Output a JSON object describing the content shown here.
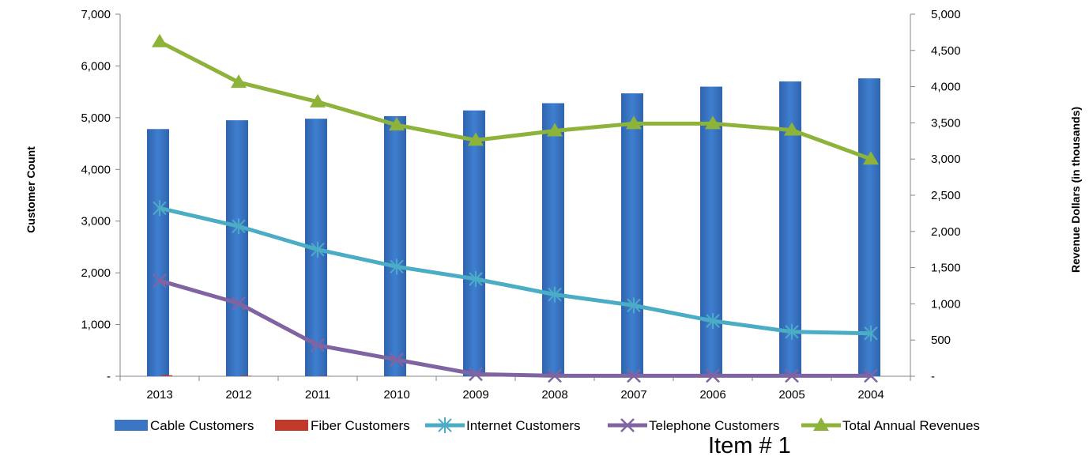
{
  "chart_data": {
    "type": "bar+line",
    "categories": [
      "2013",
      "2012",
      "2011",
      "2010",
      "2009",
      "2008",
      "2007",
      "2006",
      "2005",
      "2004"
    ],
    "ylabel_left": "Customer Count",
    "ylabel_right": "Revenue Dollars (in thousands)",
    "left_axis": {
      "range": [
        0,
        7000
      ],
      "ticks": [
        0,
        1000,
        2000,
        3000,
        4000,
        5000,
        6000,
        7000
      ],
      "tick_labels": [
        "-",
        "1,000",
        "2,000",
        "3,000",
        "4,000",
        "5,000",
        "6,000",
        "7,000"
      ]
    },
    "right_axis": {
      "range": [
        0,
        5000
      ],
      "ticks": [
        0,
        500,
        1000,
        1500,
        2000,
        2500,
        3000,
        3500,
        4000,
        4500,
        5000
      ],
      "tick_labels": [
        "-",
        "500",
        "1,000",
        "1,500",
        "2,000",
        "2,500",
        "3,000",
        "3,500",
        "4,000",
        "4,500",
        "5,000"
      ]
    },
    "series": [
      {
        "name": "Cable Customers",
        "kind": "bar",
        "axis": "left",
        "color": "#3a76c4",
        "values": [
          4780,
          4950,
          4980,
          5030,
          5140,
          5280,
          5470,
          5600,
          5700,
          5760
        ]
      },
      {
        "name": "Fiber Customers",
        "kind": "bar",
        "axis": "left",
        "color": "#c0392b",
        "values": [
          20,
          10,
          5,
          3,
          0,
          0,
          0,
          0,
          0,
          0
        ]
      },
      {
        "name": "Internet Customers",
        "kind": "line",
        "marker": "asterisk",
        "axis": "left",
        "color": "#4bacc6",
        "values": [
          3250,
          2900,
          2450,
          2120,
          1880,
          1580,
          1370,
          1070,
          860,
          830
        ]
      },
      {
        "name": "Telephone Customers",
        "kind": "line",
        "marker": "x",
        "axis": "left",
        "color": "#8064a2",
        "values": [
          1850,
          1410,
          600,
          320,
          40,
          10,
          10,
          10,
          10,
          10
        ]
      },
      {
        "name": "Total Annual Revenues",
        "kind": "line",
        "marker": "triangle",
        "axis": "right",
        "color": "#8db33a",
        "values": [
          4620,
          4060,
          3790,
          3470,
          3260,
          3390,
          3490,
          3490,
          3400,
          3000
        ]
      }
    ]
  },
  "caption": "Item # 1"
}
